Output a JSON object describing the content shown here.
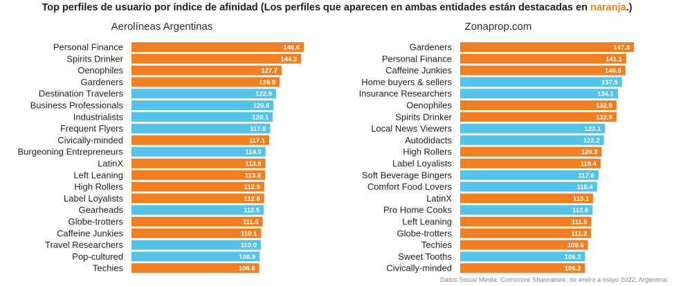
{
  "header": {
    "title_pre": "Top perfiles de usuario por índice de afinidad (Los perfiles que aparecen en ambas entidades están destacadas en ",
    "title_highlight": "naranja",
    "title_post": ".)"
  },
  "footer": "Datos Social Media: Comscore Shareablee, de enero a mayo 2022, Argentina.",
  "colors": {
    "shared": "#f07f22",
    "unique": "#55c3e8",
    "highlight_text": "#f07f22"
  },
  "chart_data": [
    {
      "type": "bar",
      "orientation": "horizontal",
      "title": "Aerolíneas Argentinas",
      "categories": [
        "Personal Finance",
        "Spirits Drinker",
        "Oenophiles",
        "Gardeners",
        "Destination Travelers",
        "Business Professionals",
        "Industrialists",
        "Frequent Flyers",
        "Civically-minded",
        "Burgeoning Entrepreneurs",
        "LatinX",
        "Left Leaning",
        "High Rollers",
        "Label Loyalists",
        "Gearheads",
        "Globe-trotters",
        "Caffeine Junkies",
        "Travel Researchers",
        "Pop-cultured",
        "Techies"
      ],
      "values": [
        146.6,
        144.3,
        127.7,
        126.0,
        122.9,
        120.8,
        120.1,
        117.9,
        117.1,
        114.0,
        113.9,
        113.6,
        112.9,
        112.8,
        112.5,
        111.5,
        110.1,
        110.0,
        108.9,
        108.6
      ],
      "value_labels": [
        "146.6",
        "144.3",
        "127.7",
        "126.0",
        "122.9",
        "120.8",
        "120.1",
        "117.9",
        "117.1",
        "114.0",
        "113.9",
        "113.6",
        "112.9",
        "112.8",
        "112.5",
        "111.5",
        "110.1",
        "110.0",
        "108.9",
        "108.6"
      ],
      "highlighted": [
        true,
        true,
        true,
        true,
        false,
        false,
        false,
        false,
        true,
        false,
        true,
        true,
        true,
        true,
        false,
        true,
        true,
        false,
        false,
        true
      ]
    },
    {
      "type": "bar",
      "orientation": "horizontal",
      "title": "Zonaprop.com",
      "categories": [
        "Gardeners",
        "Personal Finance",
        "Caffeine Junkies",
        "Home buyers & sellers",
        "Insurance Researchers",
        "Oenophiles",
        "Spirits Drinker",
        "Local News Viewers",
        "Autodidacts",
        "High Rollers",
        "Label Loyalists",
        "Soft Beverage Bingers",
        "Comfort Food Lovers",
        "LatinX",
        "Pro Home Cooks",
        "Left Leaning",
        "Globe-trotters",
        "Techies",
        "Sweet Tooths",
        "Civically-minded"
      ],
      "values": [
        147.8,
        141.1,
        140.5,
        137.5,
        134.1,
        132.9,
        132.9,
        123.1,
        122.2,
        120.3,
        119.4,
        117.6,
        116.4,
        113.1,
        112.6,
        111.5,
        111.3,
        108.6,
        106.2,
        106.2
      ],
      "value_labels": [
        "147.8",
        "141.1",
        "140.5",
        "137.5",
        "134.1",
        "132.9",
        "132.9",
        "123.1",
        "122.2",
        "120.3",
        "119.4",
        "117.6",
        "116.4",
        "113.1",
        "112.6",
        "111.5",
        "111.3",
        "108.6",
        "106.2",
        "106.2"
      ],
      "highlighted": [
        true,
        true,
        true,
        false,
        false,
        true,
        true,
        false,
        false,
        true,
        true,
        false,
        false,
        true,
        false,
        true,
        true,
        true,
        false,
        true
      ]
    }
  ]
}
